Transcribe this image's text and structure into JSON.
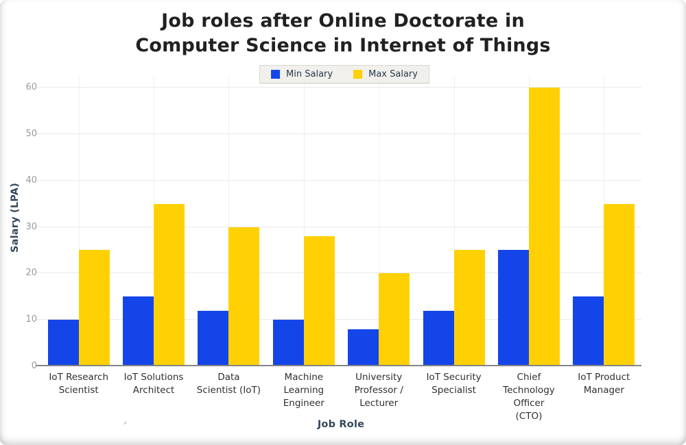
{
  "chart_data": {
    "type": "bar",
    "title": "Job roles after Online Doctorate in\nComputer Science in Internet of Things",
    "categories": [
      "IoT Research\nScientist",
      "IoT Solutions\nArchitect",
      "Data\nScientist (IoT)",
      "Machine\nLearning\nEngineer",
      "University\nProfessor /\nLecturer",
      "IoT Security\nSpecialist",
      "Chief\nTechnology\nOfficer\n(CTO)",
      "IoT Product\nManager"
    ],
    "series": [
      {
        "name": "Min Salary",
        "color": "#1445E8",
        "values": [
          10,
          15,
          12,
          10,
          8,
          12,
          25,
          15
        ]
      },
      {
        "name": "Max Salary",
        "color": "#FFD105",
        "values": [
          25,
          35,
          30,
          28,
          20,
          25,
          60,
          35
        ]
      }
    ],
    "xlabel": "Job Role",
    "ylabel": "Salary (LPA)",
    "ylim": [
      0,
      60
    ],
    "yticks": [
      0,
      10,
      20,
      30,
      40,
      50,
      60
    ],
    "grid": true,
    "legend_position": "top-center",
    "colors": {
      "title_text": "#212121",
      "axis_title_text": "#33475b",
      "tick_label_text": "#9a9a9a",
      "category_label_text": "#2f2f2f",
      "gridline": "#e9e9e9",
      "axis_line": "#858585",
      "legend_background": "#f1f0ec"
    }
  }
}
